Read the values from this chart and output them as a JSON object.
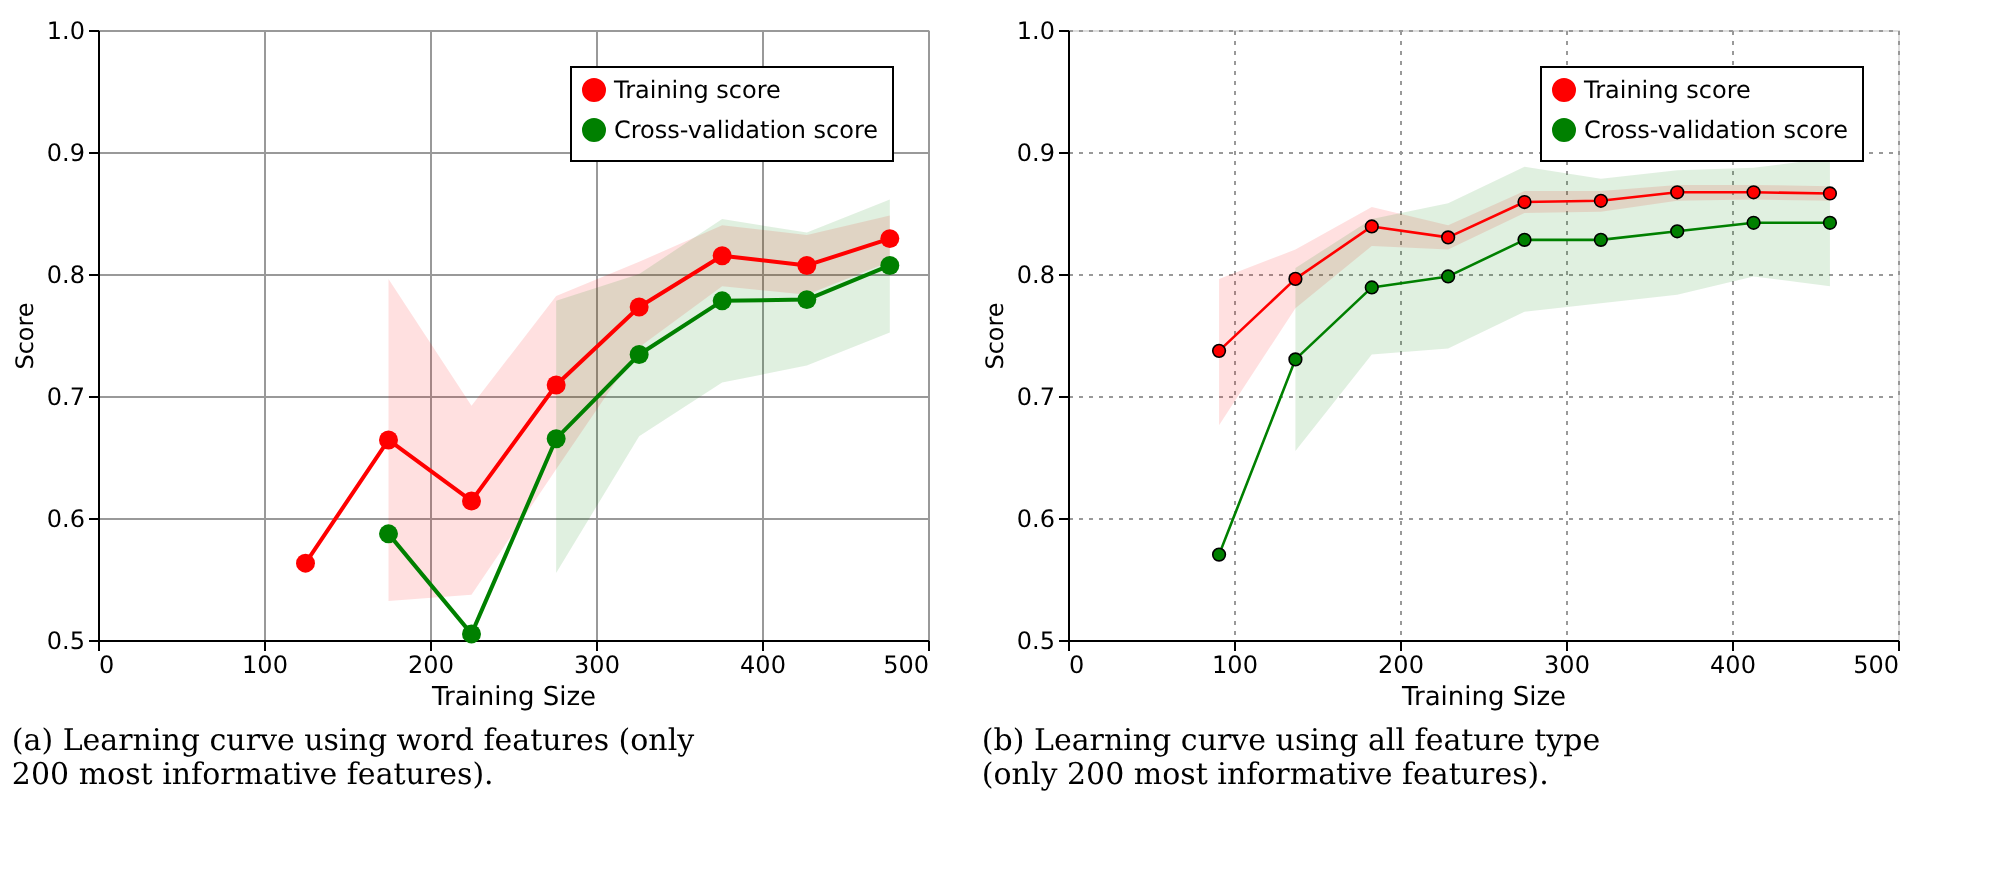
{
  "chart_data": [
    {
      "type": "line",
      "xlabel": "Training Size",
      "ylabel": "Score",
      "xlim": [
        0,
        500
      ],
      "ylim": [
        0.5,
        1.0
      ],
      "xticks": [
        0,
        100,
        200,
        300,
        400,
        500
      ],
      "yticks": [
        0.5,
        0.6,
        0.7,
        0.8,
        0.9,
        {
          "value": 1.0,
          "label": "1.0"
        }
      ],
      "grid": true,
      "legend": "top right",
      "marker": "circle",
      "annotations": [
        "(a) Learning curve using word features (only 200 most informative features)."
      ],
      "series": [
        {
          "name": "Training score",
          "color": "#ff0000",
          "x": [
            125,
            175,
            225,
            276,
            326,
            376,
            427,
            477
          ],
          "values": [
            0.563,
            0.664,
            0.614,
            0.709,
            0.773,
            0.815,
            0.807,
            0.829
          ],
          "lower": [
            null,
            0.532,
            0.537,
            0.64,
            0.74,
            0.79,
            0.783,
            0.81
          ],
          "upper": [
            null,
            0.796,
            0.692,
            0.782,
            0.81,
            0.84,
            0.832,
            0.848
          ]
        },
        {
          "name": "Cross-validation score",
          "color": "#008000",
          "x": [
            175,
            225,
            276,
            326,
            376,
            427,
            477
          ],
          "values": [
            0.587,
            0.505,
            0.665,
            0.734,
            0.778,
            0.779,
            0.807
          ],
          "lower": [
            null,
            null,
            0.555,
            0.667,
            0.711,
            0.725,
            0.752
          ],
          "upper": [
            null,
            null,
            0.778,
            0.8,
            0.845,
            0.834,
            0.861
          ]
        }
      ]
    },
    {
      "type": "line",
      "xlabel": "Training Size",
      "ylabel": "Score",
      "xlim": [
        0,
        500
      ],
      "ylim": [
        0.5,
        1.0
      ],
      "xticks": [
        0,
        100,
        200,
        300,
        400,
        500
      ],
      "yticks": [
        0.5,
        0.6,
        0.7,
        0.8,
        0.9,
        {
          "value": 1.0,
          "label": "1.0"
        }
      ],
      "grid": true,
      "legend": "top right",
      "marker": "circle",
      "annotations": [
        "(b) Learning curve using all feature type (only 200 most informative features)."
      ],
      "series": [
        {
          "name": "Training score",
          "color": "#ff0000",
          "x": [
            91,
            137,
            183,
            229,
            275,
            321,
            367,
            413,
            459
          ],
          "values": [
            0.737,
            0.796,
            0.839,
            0.83,
            0.859,
            0.86,
            0.867,
            0.867,
            0.866
          ],
          "lower": [
            0.676,
            0.772,
            0.823,
            0.82,
            0.85,
            0.851,
            0.86,
            0.861,
            0.86
          ],
          "upper": [
            0.796,
            0.82,
            0.855,
            0.84,
            0.868,
            0.868,
            0.873,
            0.873,
            0.872
          ]
        },
        {
          "name": "Cross-validation score",
          "color": "#008000",
          "x": [
            91,
            137,
            183,
            229,
            275,
            321,
            367,
            413,
            459
          ],
          "values": [
            0.57,
            0.73,
            0.789,
            0.798,
            0.828,
            0.828,
            0.835,
            0.842,
            0.842
          ],
          "lower": [
            null,
            0.655,
            0.734,
            0.739,
            0.769,
            0.776,
            0.783,
            0.798,
            0.79
          ],
          "upper": [
            null,
            0.805,
            0.845,
            0.858,
            0.888,
            0.878,
            0.885,
            0.887,
            0.895
          ]
        }
      ]
    }
  ]
}
